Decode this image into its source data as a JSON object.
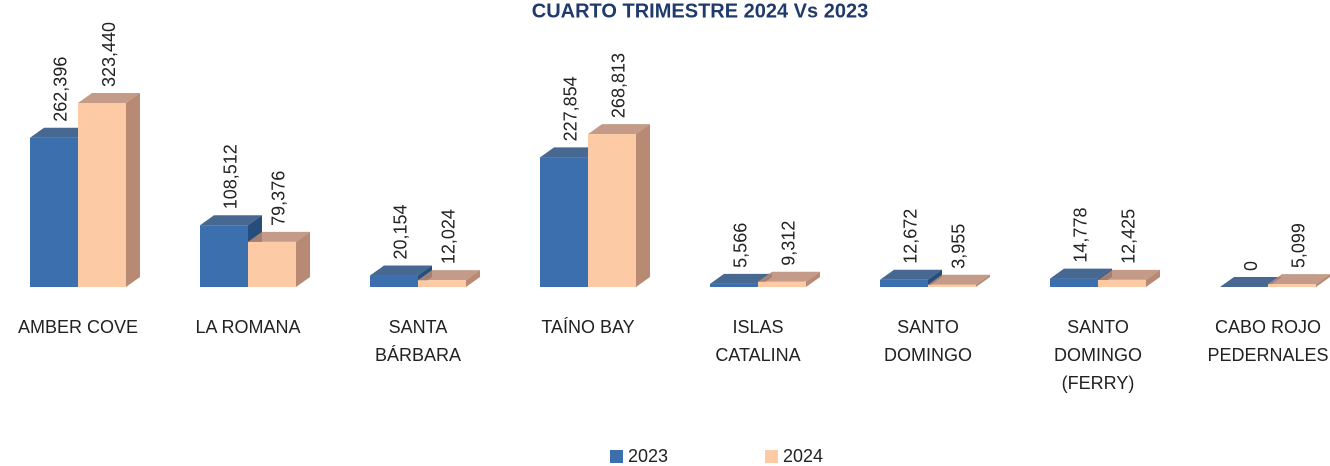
{
  "chart_data": {
    "type": "bar3d",
    "title": "CUARTO TRIMESTRE 2024 Vs 2023",
    "categories": [
      "AMBER COVE",
      "LA ROMANA",
      "SANTA\nBÁRBARA",
      "TAÍNO BAY",
      "ISLAS\nCATALINA",
      "SANTO\nDOMINGO",
      "SANTO\nDOMINGO\n(FERRY)",
      "CABO ROJO\nPEDERNALES"
    ],
    "series": [
      {
        "name": "2023",
        "color": "#3b6fae",
        "side": "#274d7c",
        "values": [
          262396,
          108512,
          20154,
          227854,
          5566,
          12672,
          14778,
          0
        ],
        "value_labels": [
          "262,396",
          "108,512",
          "20,154",
          "227,854",
          "5,566",
          "12,672",
          "14,778",
          "0"
        ]
      },
      {
        "name": "2024",
        "color": "#fccaa5",
        "side": "#b88a73",
        "values": [
          323440,
          79376,
          12024,
          268813,
          9312,
          3955,
          12425,
          5099
        ],
        "value_labels": [
          "323,440",
          "79,376",
          "12,024",
          "268,813",
          "9,312",
          "3,955",
          "12,425",
          "5,099"
        ]
      }
    ],
    "legend": "bottom"
  }
}
